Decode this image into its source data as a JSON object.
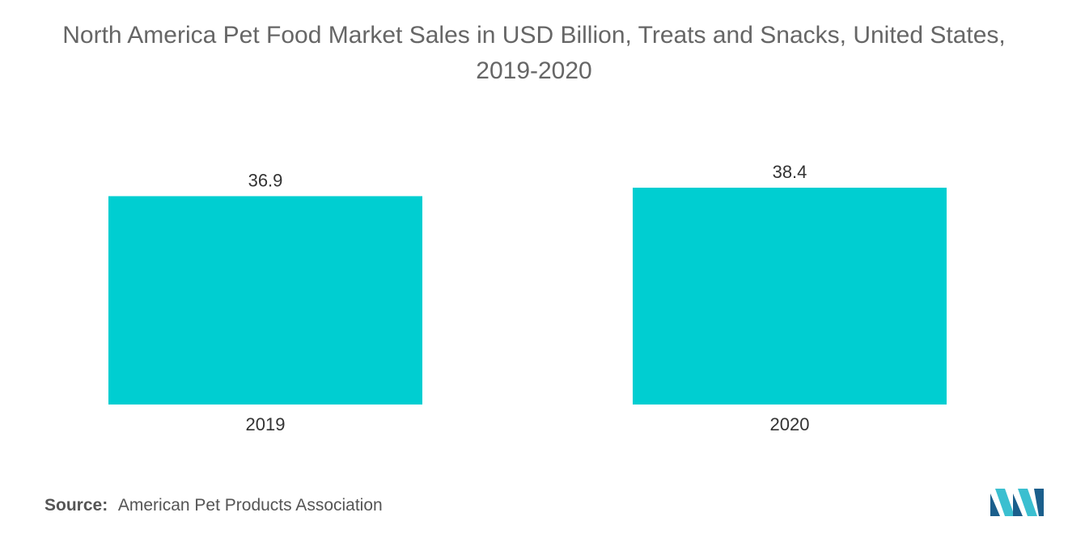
{
  "chart_data": {
    "type": "bar",
    "title_lines": [
      "North America Pet Food Market Sales in USD Billion, Treats and Snacks, United States,",
      "2019-2020"
    ],
    "categories": [
      "2019",
      "2020"
    ],
    "series": [
      {
        "name": "Sales (USD Billion)",
        "values": [
          36.9,
          38.4
        ]
      }
    ],
    "value_labels": [
      "36.9",
      "38.4"
    ],
    "xlabel": "",
    "ylabel": "",
    "ylim": [
      0,
      38.4
    ],
    "grid": false,
    "legend": "none",
    "bar_color": "#00CED1"
  },
  "source": {
    "label": "Source:",
    "text": "American Pet Products Association"
  },
  "colors": {
    "bar": "#00CED1",
    "title": "#666666",
    "text": "#333333",
    "logo_dark": "#1B5F8C",
    "logo_light": "#3BBFD0"
  },
  "logo": {
    "icon": "mordor-intelligence-logo-icon"
  }
}
